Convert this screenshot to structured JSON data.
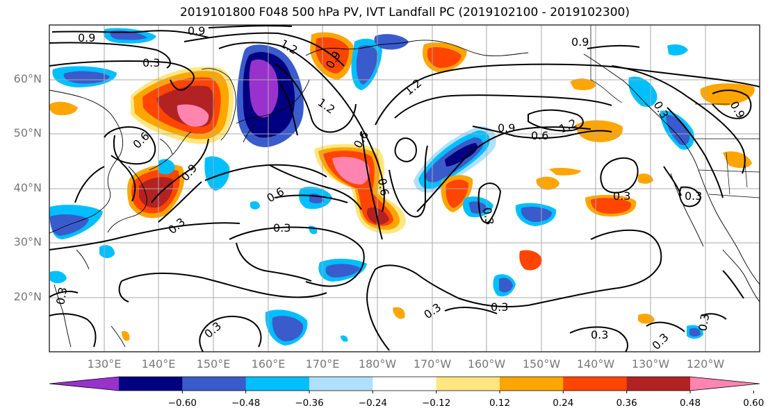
{
  "title": "2019101800 F048 500 hPa PV, IVT Landfall PC (2019102100 - 2019102300)",
  "lat_labels": [
    "60°N",
    "50°N",
    "40°N",
    "30°N",
    "20°N"
  ],
  "lon_labels": [
    "130°E",
    "140°E",
    "150°E",
    "160°E",
    "170°E",
    "180°W",
    "170°W",
    "160°W",
    "150°W",
    "140°W",
    "130°W",
    "120°W"
  ],
  "colorbar": {
    "ticks": [
      "−0.60",
      "−0.48",
      "−0.36",
      "−0.24",
      "−0.12",
      "0.12",
      "0.24",
      "0.36",
      "0.48",
      "0.60"
    ],
    "colors": [
      "#9932cc",
      "#000080",
      "#3a5bcc",
      "#00bfff",
      "#b0e0ff",
      "#ffffff",
      "#ffe680",
      "#ffa500",
      "#ff4500",
      "#b22222",
      "#ff85b0"
    ]
  },
  "contour_labels": [
    "0.9",
    "0.3",
    "1.2",
    "0.9",
    "1.2",
    "0.6",
    "1.2",
    "0.9",
    "0.6",
    "0.9",
    "1.2",
    "0.6",
    "0.9",
    "0.9",
    "0.6",
    "0.6",
    "0.3",
    "0.3",
    "0.3",
    "0.3",
    "0.3",
    "0.3",
    "0.3",
    "0.3",
    "0.3",
    "0.3",
    "0.3",
    "0.3",
    "0.3",
    "0.9"
  ]
}
